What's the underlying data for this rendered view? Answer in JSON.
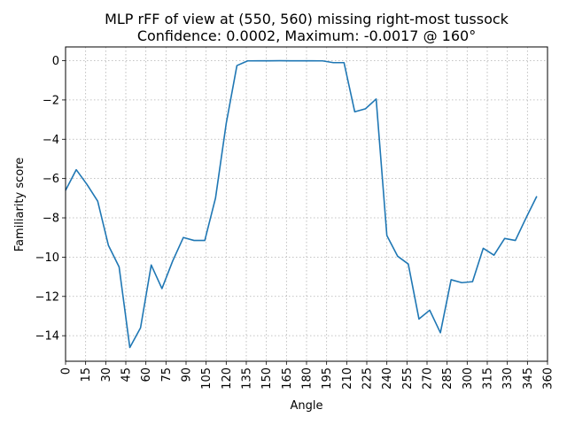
{
  "chart_data": {
    "type": "line",
    "title": "MLP rFF of view at (550, 560) missing right-most tussock",
    "subtitle": "Confidence: 0.0002, Maximum: -0.0017 @ 160°",
    "xlabel": "Angle",
    "ylabel": "Familiarity score",
    "xlim": [
      0,
      360
    ],
    "ylim": [
      -15.3,
      0.7
    ],
    "x_ticks": [
      0,
      15,
      30,
      45,
      60,
      75,
      90,
      105,
      120,
      135,
      150,
      165,
      180,
      195,
      210,
      225,
      240,
      255,
      270,
      285,
      300,
      315,
      330,
      345,
      360
    ],
    "y_ticks": [
      0,
      -2,
      -4,
      -6,
      -8,
      -10,
      -12,
      -14
    ],
    "grid": true,
    "line_color": "#1f77b4",
    "series": [
      {
        "x": [
          0,
          8,
          16,
          24,
          32,
          40,
          48,
          56,
          64,
          72,
          80,
          88,
          96,
          104,
          112,
          120,
          128,
          136,
          144,
          152,
          160,
          168,
          176,
          184,
          192,
          200,
          208,
          216,
          224,
          232,
          240,
          248,
          256,
          264,
          272,
          280,
          288,
          296,
          304,
          312,
          320,
          328,
          336,
          344,
          352
        ],
        "y": [
          -6.6,
          -5.55,
          -6.3,
          -7.15,
          -9.4,
          -10.5,
          -14.6,
          -13.6,
          -10.4,
          -11.6,
          -10.2,
          -9.0,
          -9.15,
          -9.15,
          -7.0,
          -3.2,
          -0.25,
          -0.01,
          -0.005,
          -0.005,
          -0.0017,
          -0.005,
          -0.005,
          -0.005,
          -0.01,
          -0.1,
          -0.1,
          -2.6,
          -2.45,
          -1.95,
          -8.9,
          -9.95,
          -10.35,
          -13.15,
          -12.7,
          -13.85,
          -11.15,
          -11.3,
          -11.25,
          -9.55,
          -9.9,
          -9.05,
          -9.15,
          -8.0,
          -6.9
        ]
      }
    ]
  }
}
